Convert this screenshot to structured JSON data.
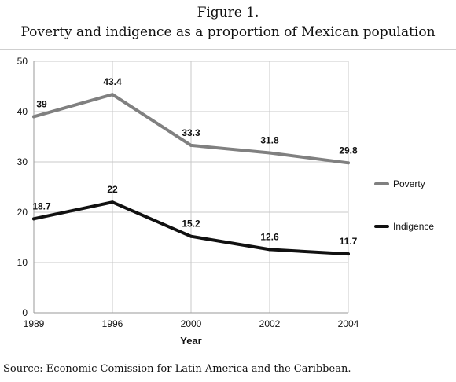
{
  "figure": {
    "label": "Figure 1.",
    "title": "Poverty and indigence as a proportion of Mexican population",
    "source": "Source: Economic Comission for Latin America and the Caribbean."
  },
  "chart_data": {
    "type": "line",
    "categories": [
      "1989",
      "1996",
      "2000",
      "2002",
      "2004"
    ],
    "xlabel": "Year",
    "ylabel": "",
    "ylim": [
      0,
      50
    ],
    "yticks": [
      0,
      10,
      20,
      30,
      40,
      50
    ],
    "grid": true,
    "legend_position": "right",
    "series": [
      {
        "name": "Poverty",
        "values": [
          39,
          43.4,
          33.3,
          31.8,
          29.8
        ],
        "color": "#808080"
      },
      {
        "name": "Indigence",
        "values": [
          18.7,
          22,
          15.2,
          12.6,
          11.7
        ],
        "color": "#111111"
      }
    ]
  }
}
